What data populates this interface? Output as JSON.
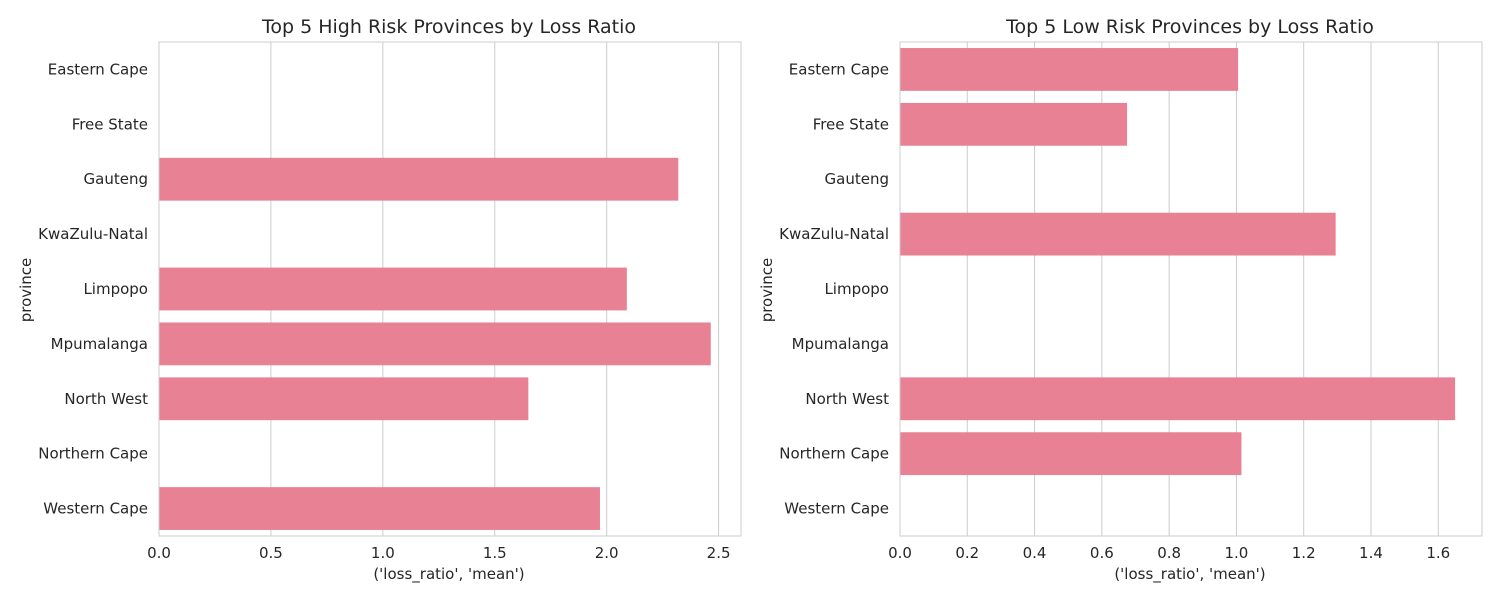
{
  "colors": {
    "bar": "#e88194",
    "grid": "#cccccc",
    "text": "#262626"
  },
  "chart_data": [
    {
      "type": "bar",
      "orientation": "horizontal",
      "title": "Top 5 High Risk Provinces by Loss Ratio",
      "xlabel": "('loss_ratio', 'mean')",
      "ylabel": "province",
      "categories": [
        "Eastern Cape",
        "Free State",
        "Gauteng",
        "KwaZulu-Natal",
        "Limpopo",
        "Mpumalanga",
        "North West",
        "Northern Cape",
        "Western Cape"
      ],
      "values": [
        null,
        null,
        2.32,
        null,
        2.09,
        2.465,
        1.65,
        null,
        1.97
      ],
      "xlim": [
        0,
        2.6
      ],
      "xticks": [
        "0.0",
        "0.5",
        "1.0",
        "1.5",
        "2.0",
        "2.5"
      ],
      "grid": true
    },
    {
      "type": "bar",
      "orientation": "horizontal",
      "title": "Top 5 Low Risk Provinces by Loss Ratio",
      "xlabel": "('loss_ratio', 'mean')",
      "ylabel": "province",
      "categories": [
        "Eastern Cape",
        "Free State",
        "Gauteng",
        "KwaZulu-Natal",
        "Limpopo",
        "Mpumalanga",
        "North West",
        "Northern Cape",
        "Western Cape"
      ],
      "values": [
        1.005,
        0.675,
        null,
        1.295,
        null,
        null,
        1.65,
        1.015,
        null
      ],
      "xlim": [
        0,
        1.73
      ],
      "xticks": [
        "0.0",
        "0.2",
        "0.4",
        "0.6",
        "0.8",
        "1.0",
        "1.2",
        "1.4",
        "1.6"
      ],
      "grid": true
    }
  ]
}
